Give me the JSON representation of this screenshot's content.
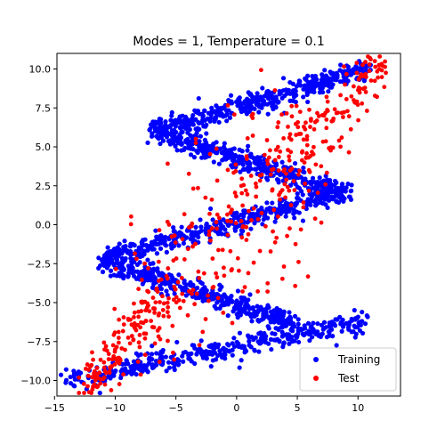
{
  "chart_data": {
    "type": "scatter",
    "title": "Modes = 1, Temperature = 0.1",
    "xlabel": "",
    "ylabel": "",
    "xlim": [
      -14.8,
      13.5
    ],
    "ylim": [
      -11.0,
      11.0
    ],
    "xticks": [
      -15,
      -10,
      -5,
      0,
      5,
      10
    ],
    "yticks": [
      -10.0,
      -7.5,
      -5.0,
      -2.5,
      0.0,
      2.5,
      5.0,
      7.5,
      10.0
    ],
    "xtick_labels": [
      "−15",
      "−10",
      "−5",
      "0",
      "5",
      "10"
    ],
    "ytick_labels": [
      "−10.0",
      "−7.5",
      "−5.0",
      "−2.5",
      "0.0",
      "2.5",
      "5.0",
      "7.5",
      "10.0"
    ],
    "grid": false,
    "legend_position": "lower-right",
    "series": [
      {
        "name": "Training",
        "color": "#0000ff",
        "description_segments": [
          {
            "x": [
              -14.0,
              10.5
            ],
            "y": [
              -10.0,
              -6.2
            ]
          },
          {
            "x": [
              -11.0,
              5.0
            ],
            "y": [
              -2.2,
              -6.5
            ]
          },
          {
            "x": [
              -11.0,
              9.0
            ],
            "y": [
              -2.2,
              2.2
            ]
          },
          {
            "x": [
              -7.0,
              9.0
            ],
            "y": [
              6.0,
              2.0
            ]
          },
          {
            "x": [
              -7.0,
              11.0
            ],
            "y": [
              6.0,
              10.0
            ]
          }
        ]
      },
      {
        "name": "Test",
        "color": "#ff0000",
        "description_segments": [
          {
            "x": [
              -12.5,
              12.0
            ],
            "y": [
              -10.5,
              10.5
            ]
          }
        ]
      }
    ]
  },
  "legend": {
    "items": [
      {
        "label": "Training",
        "color": "#0000ff"
      },
      {
        "label": "Test",
        "color": "#ff0000"
      }
    ]
  }
}
